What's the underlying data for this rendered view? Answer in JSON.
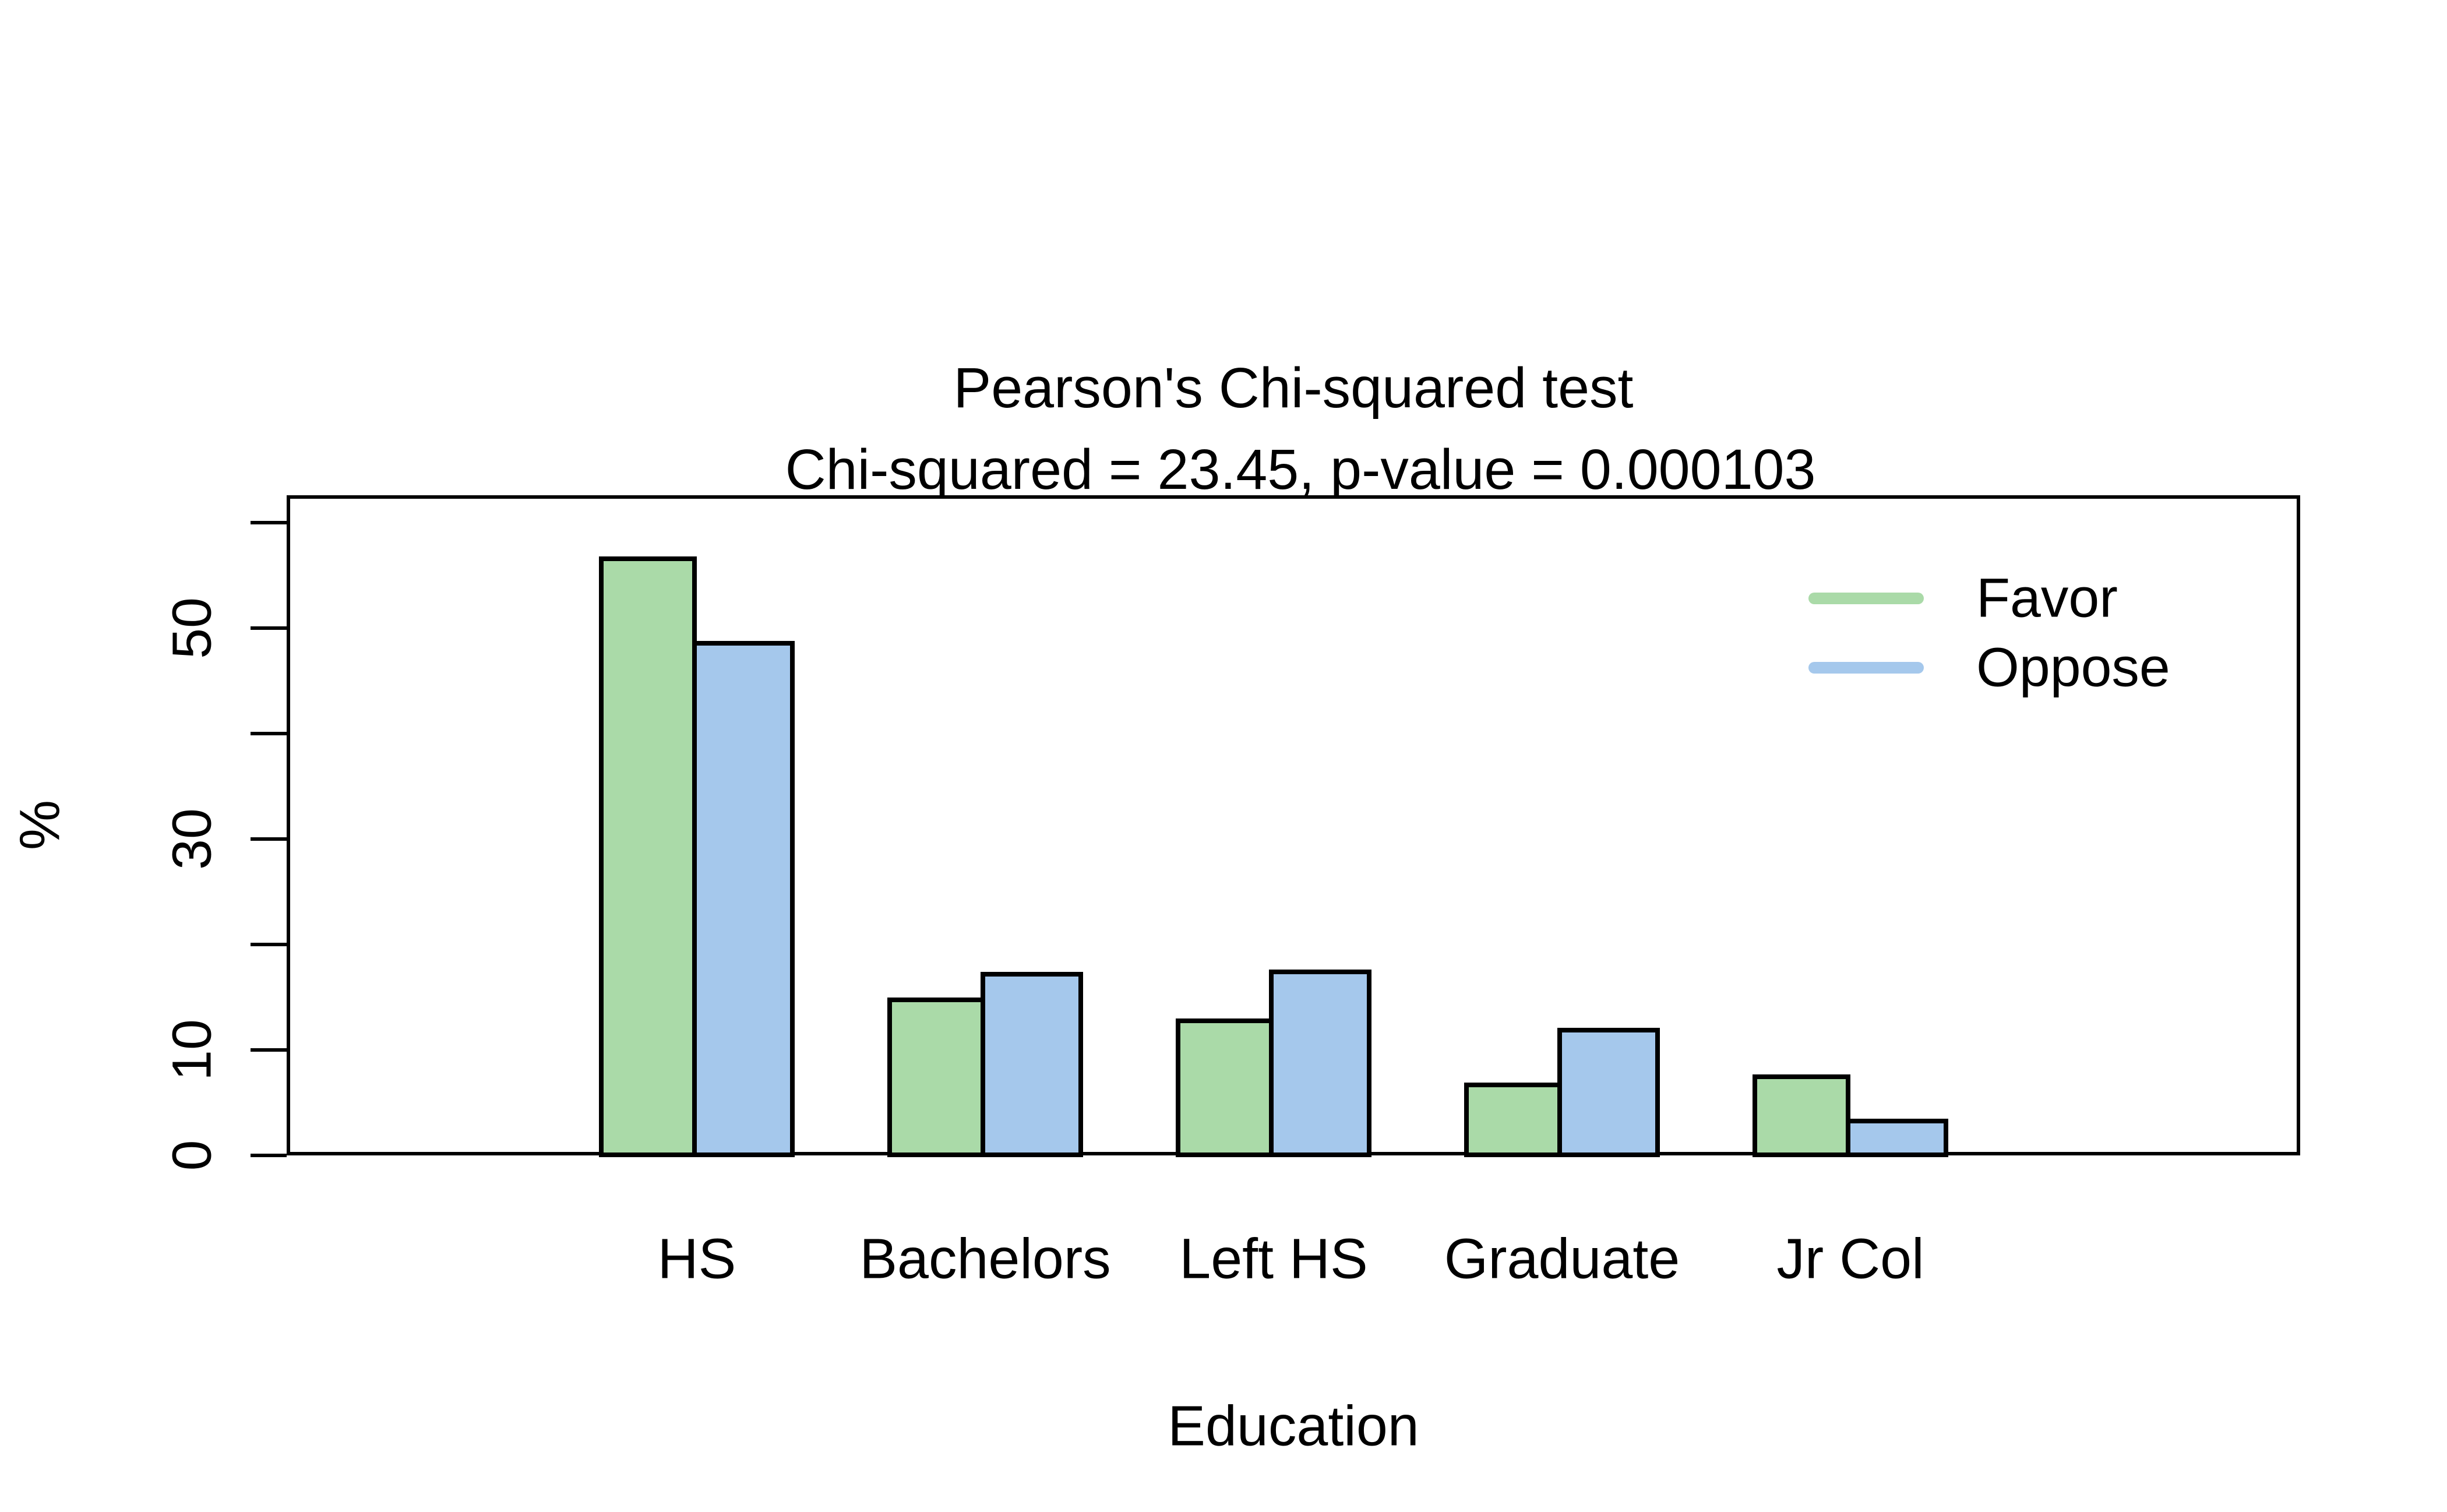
{
  "title": {
    "line1": "Pearson's Chi-squared test",
    "line2": "Chi-squared = 23.45, p-value = 0.000103"
  },
  "axes": {
    "y": {
      "label": "%",
      "ticks": [
        0,
        10,
        20,
        30,
        40,
        50,
        60
      ],
      "labeled_ticks": [
        0,
        10,
        30,
        50
      ]
    },
    "x": {
      "label": "Education",
      "categories": [
        "HS",
        "Bachelors",
        "Left HS",
        "Graduate",
        "Jr Col"
      ]
    }
  },
  "legend": {
    "position": "top-right",
    "items": [
      {
        "label": "Favor",
        "color": "#AADAA8"
      },
      {
        "label": "Oppose",
        "color": "#A5C8EC"
      }
    ]
  },
  "colors": {
    "favor_fill": "#AADAA8",
    "oppose_fill": "#A5C8EC",
    "bar_border": "#000000",
    "axis": "#000000",
    "background": "#ffffff"
  },
  "chart_data": {
    "type": "bar",
    "categories": [
      "HS",
      "Bachelors",
      "Left HS",
      "Graduate",
      "Jr Col"
    ],
    "series": [
      {
        "name": "Favor",
        "color": "#AADAA8",
        "values": [
          56.8,
          15.0,
          13.0,
          6.9,
          7.7
        ]
      },
      {
        "name": "Oppose",
        "color": "#A5C8EC",
        "values": [
          48.8,
          17.4,
          17.6,
          12.1,
          3.5
        ]
      }
    ],
    "title": "Pearson's Chi-squared test\nChi-squared = 23.45, p-value = 0.000103",
    "xlabel": "Education",
    "ylabel": "%",
    "ylim": [
      0,
      62.6
    ],
    "yticks": [
      0,
      10,
      20,
      30,
      40,
      50,
      60
    ],
    "ytick_labels_shown": [
      0,
      10,
      30,
      50
    ],
    "grid": false,
    "legend_position": "top-right",
    "bar_border_color": "#000000"
  }
}
